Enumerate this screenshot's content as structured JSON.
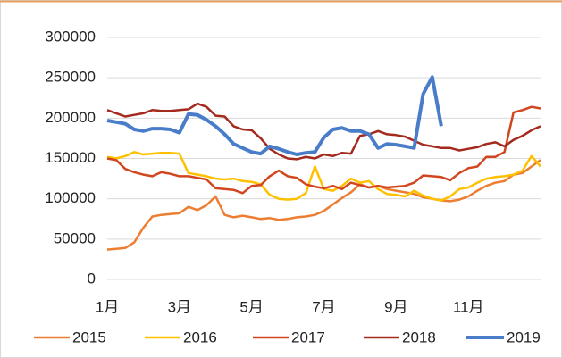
{
  "chart_data": {
    "type": "line",
    "categories": [
      "1月",
      null,
      null,
      null,
      null,
      null,
      null,
      null,
      "3月",
      null,
      null,
      null,
      null,
      null,
      null,
      null,
      "5月",
      null,
      null,
      null,
      null,
      null,
      null,
      null,
      "7月",
      null,
      null,
      null,
      null,
      null,
      null,
      null,
      "9月",
      null,
      null,
      null,
      null,
      null,
      null,
      null,
      "11月",
      null,
      null,
      null,
      null,
      null,
      null,
      null,
      null
    ],
    "series": [
      {
        "name": "2015",
        "color": "#ed7d31",
        "values": [
          37000,
          38000,
          39000,
          46000,
          64000,
          78000,
          80000,
          81000,
          82000,
          90000,
          86000,
          92000,
          103000,
          80000,
          77000,
          79000,
          77000,
          75000,
          76000,
          74000,
          75000,
          77000,
          78000,
          80000,
          85000,
          93000,
          101000,
          108000,
          118000,
          114000,
          116000,
          112000,
          110000,
          108000,
          106000,
          102000,
          100000,
          98000,
          97000,
          99000,
          103000,
          110000,
          116000,
          120000,
          122000,
          130000,
          132000,
          140000,
          148000
        ]
      },
      {
        "name": "2016",
        "color": "#ffc000",
        "values": [
          152000,
          150000,
          153000,
          158000,
          155000,
          156000,
          157000,
          157000,
          156000,
          132000,
          130000,
          128000,
          125000,
          124000,
          125000,
          122000,
          121000,
          118000,
          105000,
          100000,
          99000,
          100000,
          107000,
          140000,
          112000,
          110000,
          116000,
          125000,
          120000,
          122000,
          112000,
          106000,
          105000,
          103000,
          110000,
          104000,
          100000,
          98000,
          103000,
          112000,
          114000,
          120000,
          125000,
          127000,
          128000,
          130000,
          135000,
          153000,
          140000
        ]
      },
      {
        "name": "2017",
        "color": "#d2461f",
        "values": [
          150000,
          148000,
          137000,
          133000,
          130000,
          128000,
          133000,
          131000,
          128000,
          128000,
          126000,
          124000,
          113000,
          112000,
          111000,
          107000,
          116000,
          117000,
          128000,
          135000,
          128000,
          126000,
          118000,
          115000,
          113000,
          116000,
          112000,
          120000,
          117000,
          114000,
          116000,
          114000,
          115000,
          116000,
          120000,
          129000,
          128000,
          127000,
          123000,
          132000,
          138000,
          140000,
          152000,
          152000,
          158000,
          207000,
          210000,
          214000,
          212000
        ]
      },
      {
        "name": "2018",
        "color": "#a52a1e",
        "values": [
          210000,
          206000,
          202000,
          204000,
          206000,
          210000,
          209000,
          209000,
          210000,
          211000,
          218000,
          214000,
          203000,
          202000,
          190000,
          186000,
          185000,
          175000,
          162000,
          155000,
          150000,
          149000,
          152000,
          150000,
          155000,
          153000,
          157000,
          156000,
          178000,
          180000,
          184000,
          180000,
          179000,
          177000,
          172000,
          167000,
          165000,
          163000,
          163000,
          160000,
          162000,
          164000,
          168000,
          170000,
          165000,
          173000,
          178000,
          185000,
          190000
        ]
      },
      {
        "name": "2019",
        "color": "#4a7dc9",
        "values": [
          197000,
          195000,
          193000,
          186000,
          184000,
          187000,
          187000,
          186000,
          182000,
          205000,
          204000,
          198000,
          190000,
          180000,
          168000,
          163000,
          158000,
          156000,
          165000,
          162000,
          158000,
          155000,
          157000,
          158000,
          176000,
          186000,
          188000,
          184000,
          184000,
          180000,
          163000,
          168000,
          167000,
          165000,
          163000,
          230000,
          251000,
          190000,
          null,
          null,
          null,
          null,
          null,
          null,
          null,
          null,
          null,
          null,
          null
        ]
      }
    ],
    "ylim": [
      0,
      300000
    ],
    "yticks": [
      0,
      50000,
      100000,
      150000,
      200000,
      250000,
      300000
    ],
    "grid": true,
    "legend": "bottom"
  }
}
